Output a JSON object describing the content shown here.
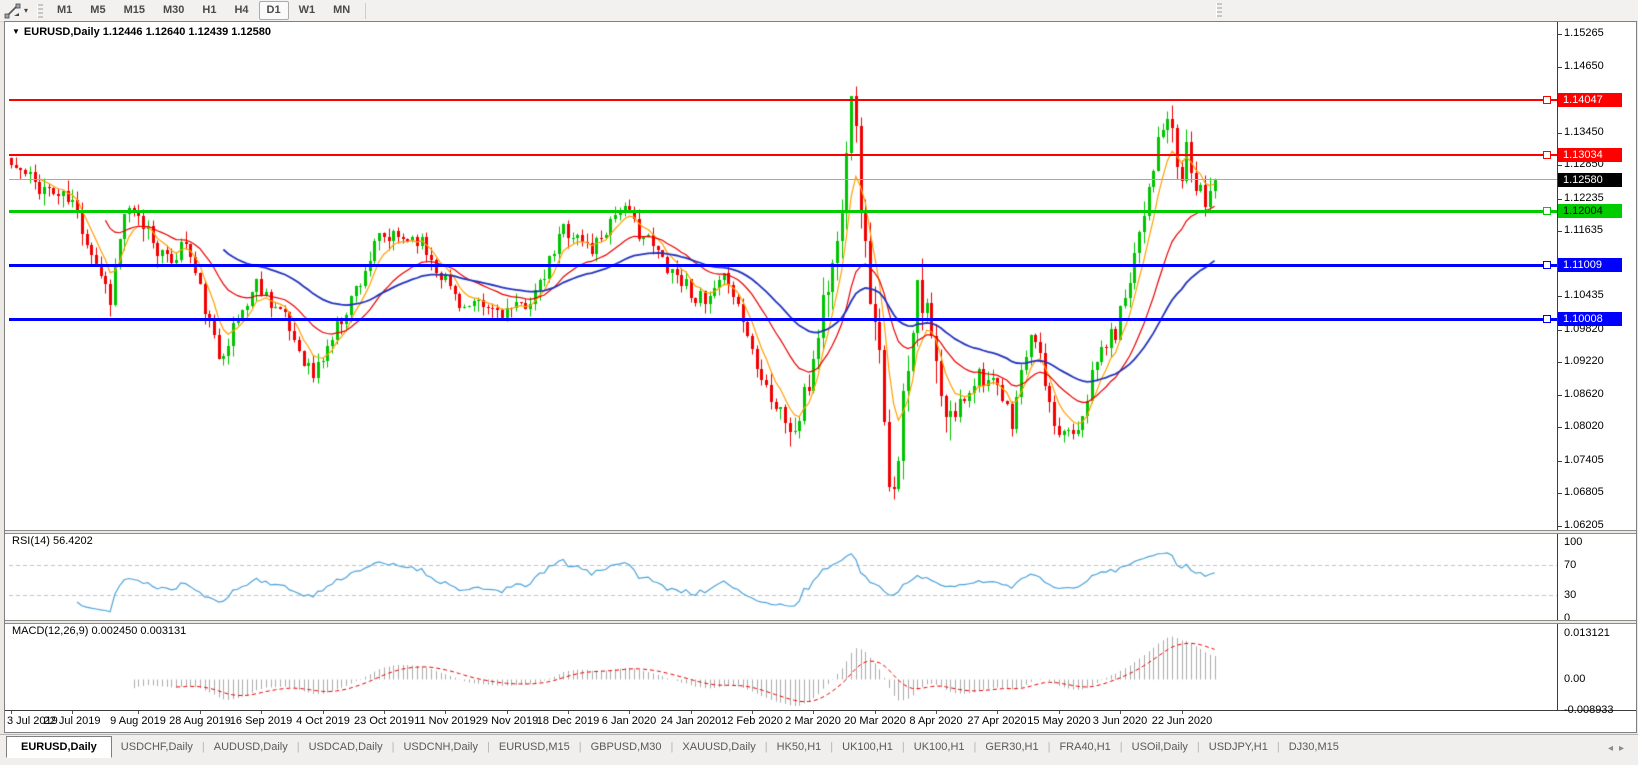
{
  "icons": {
    "title_marker": "▼",
    "toolbar_caret": "▾",
    "tab_left_arrow": "◂",
    "tab_right_arrow": "▸"
  },
  "toolbar": {
    "timeframes": [
      "M1",
      "M5",
      "M15",
      "M30",
      "H1",
      "H4",
      "D1",
      "W1",
      "MN"
    ],
    "active_timeframe": "D1"
  },
  "chart": {
    "symbol_period": "EURUSD,Daily",
    "ohlc": "1.12446 1.12640 1.12439 1.12580",
    "price_axis": {
      "ticks": [
        {
          "text": "1.15265",
          "price": 1.15265
        },
        {
          "text": "1.14650",
          "price": 1.1465
        },
        {
          "text": "1.13450",
          "price": 1.1345
        },
        {
          "text": "1.12850",
          "price": 1.1285
        },
        {
          "text": "1.12235",
          "price": 1.12235
        },
        {
          "text": "1.11635",
          "price": 1.11635
        },
        {
          "text": "1.10435",
          "price": 1.10435
        },
        {
          "text": "1.09820",
          "price": 1.0982
        },
        {
          "text": "1.09220",
          "price": 1.0922
        },
        {
          "text": "1.08620",
          "price": 1.0862
        },
        {
          "text": "1.08020",
          "price": 1.0802
        },
        {
          "text": "1.07405",
          "price": 1.07405
        },
        {
          "text": "1.06805",
          "price": 1.06805
        },
        {
          "text": "1.06205",
          "price": 1.06205
        }
      ],
      "badges": [
        {
          "text": "1.14047",
          "price": 1.14047,
          "bg": "#FF0000",
          "fg": "#FFFFFF"
        },
        {
          "text": "1.13034",
          "price": 1.13034,
          "bg": "#FF0000",
          "fg": "#FFFFFF"
        },
        {
          "text": "1.12580",
          "price": 1.1258,
          "bg": "#000000",
          "fg": "#FFFFFF"
        },
        {
          "text": "1.12004",
          "price": 1.12004,
          "bg": "#00CC00",
          "fg": "#000000"
        },
        {
          "text": "1.11009",
          "price": 1.11009,
          "bg": "#0000FF",
          "fg": "#FFFFFF"
        },
        {
          "text": "1.10008",
          "price": 1.10008,
          "bg": "#0000FF",
          "fg": "#FFFFFF"
        }
      ]
    },
    "levels": [
      {
        "price": 1.14047,
        "color": "#FF0000",
        "width": 2,
        "handle": true
      },
      {
        "price": 1.13034,
        "color": "#FF0000",
        "width": 2,
        "handle": true
      },
      {
        "price": 1.12004,
        "color": "#00CC00",
        "width": 3,
        "handle": true
      },
      {
        "price": 1.11009,
        "color": "#0000FF",
        "width": 3,
        "handle": true
      },
      {
        "price": 1.10008,
        "color": "#0000FF",
        "width": 3,
        "handle": true
      }
    ],
    "current_price": {
      "price": 1.1258,
      "color": "#A8A8A8"
    },
    "candles": {
      "count": 256,
      "seed": 11,
      "anchors": [
        [
          0,
          1.1285
        ],
        [
          5,
          1.1253
        ],
        [
          13,
          1.1215
        ],
        [
          17,
          1.1128
        ],
        [
          21,
          1.1042
        ],
        [
          24,
          1.1198
        ],
        [
          29,
          1.1168
        ],
        [
          33,
          1.1102
        ],
        [
          37,
          1.1145
        ],
        [
          42,
          1.0992
        ],
        [
          44,
          1.0932
        ],
        [
          52,
          1.1068
        ],
        [
          57,
          1.1016
        ],
        [
          64,
          1.0896
        ],
        [
          72,
          1.104
        ],
        [
          78,
          1.1148
        ],
        [
          86,
          1.1152
        ],
        [
          96,
          1.1022
        ],
        [
          107,
          1.1016
        ],
        [
          112,
          1.1058
        ],
        [
          117,
          1.1172
        ],
        [
          123,
          1.113
        ],
        [
          129,
          1.121
        ],
        [
          137,
          1.1122
        ],
        [
          147,
          1.1026
        ],
        [
          152,
          1.108
        ],
        [
          157,
          1.0946
        ],
        [
          162,
          1.084
        ],
        [
          166,
          1.079
        ],
        [
          169,
          1.088
        ],
        [
          172,
          1.1032
        ],
        [
          175,
          1.1135
        ],
        [
          178,
          1.1438
        ],
        [
          181,
          1.112
        ],
        [
          184,
          1.092
        ],
        [
          186,
          1.0668
        ],
        [
          188,
          1.0772
        ],
        [
          192,
          1.1085
        ],
        [
          195,
          1.096
        ],
        [
          198,
          1.0802
        ],
        [
          202,
          1.086
        ],
        [
          205,
          1.0905
        ],
        [
          209,
          1.0868
        ],
        [
          212,
          1.0815
        ],
        [
          215,
          1.094
        ],
        [
          217,
          1.0972
        ],
        [
          221,
          1.0788
        ],
        [
          226,
          1.0808
        ],
        [
          231,
          1.0948
        ],
        [
          234,
          1.0978
        ],
        [
          238,
          1.1126
        ],
        [
          242,
          1.1292
        ],
        [
          245,
          1.1372
        ],
        [
          247,
          1.1288
        ],
        [
          248,
          1.1252
        ],
        [
          249,
          1.1326
        ],
        [
          251,
          1.1238
        ],
        [
          253,
          1.1218
        ],
        [
          255,
          1.1258
        ]
      ]
    },
    "colors": {
      "up": "#00C400",
      "down": "#F00000",
      "ma_fast": "#FFA000",
      "ma_mid": "#E80000",
      "ma_slow": "#2233BB"
    }
  },
  "rsi": {
    "label": "RSI(14) 56.4202",
    "period": 14,
    "levels": [
      70,
      30
    ],
    "ticks": [
      {
        "text": "100",
        "v": 100
      },
      {
        "text": "70",
        "v": 70
      },
      {
        "text": "30",
        "v": 30
      },
      {
        "text": "0",
        "v": 0
      }
    ],
    "line_color": "#4FA3D9"
  },
  "macd": {
    "label": "MACD(12,26,9) 0.002450 0.003131",
    "fast": 12,
    "slow": 26,
    "signal": 9,
    "ticks": [
      {
        "text": "0.013121",
        "v": 0.013121
      },
      {
        "text": "0.00",
        "v": 0
      },
      {
        "text": "-0.008933",
        "v": -0.008933
      }
    ],
    "hist_color": "#ABABAB",
    "signal_color": "#E80000",
    "max_value": 0.013121
  },
  "date_axis": {
    "labels": [
      {
        "text": "3 Jul 2019",
        "index": 0
      },
      {
        "text": "22 Jul 2019",
        "index": 13
      },
      {
        "text": "9 Aug 2019",
        "index": 27
      },
      {
        "text": "28 Aug 2019",
        "index": 40
      },
      {
        "text": "16 Sep 2019",
        "index": 53
      },
      {
        "text": "4 Oct 2019",
        "index": 66
      },
      {
        "text": "23 Oct 2019",
        "index": 79
      },
      {
        "text": "11 Nov 2019",
        "index": 92
      },
      {
        "text": "29 Nov 2019",
        "index": 105
      },
      {
        "text": "18 Dec 2019",
        "index": 118
      },
      {
        "text": "6 Jan 2020",
        "index": 131
      },
      {
        "text": "24 Jan 2020",
        "index": 144
      },
      {
        "text": "12 Feb 2020",
        "index": 157
      },
      {
        "text": "2 Mar 2020",
        "index": 170
      },
      {
        "text": "20 Mar 2020",
        "index": 183
      },
      {
        "text": "8 Apr 2020",
        "index": 196
      },
      {
        "text": "27 Apr 2020",
        "index": 209
      },
      {
        "text": "15 May 2020",
        "index": 222
      },
      {
        "text": "3 Jun 2020",
        "index": 235
      },
      {
        "text": "22 Jun 2020",
        "index": 248
      }
    ]
  },
  "tabs": {
    "active": "EURUSD,Daily",
    "items": [
      "EURUSD,Daily",
      "USDCHF,Daily",
      "AUDUSD,Daily",
      "USDCAD,Daily",
      "USDCNH,Daily",
      "EURUSD,M15",
      "GBPUSD,M30",
      "XAUUSD,Daily",
      "HK50,H1",
      "UK100,H1",
      "UK100,H1",
      "GER30,H1",
      "FRA40,H1",
      "USOil,Daily",
      "USDJPY,H1",
      "DJ30,M15"
    ]
  }
}
